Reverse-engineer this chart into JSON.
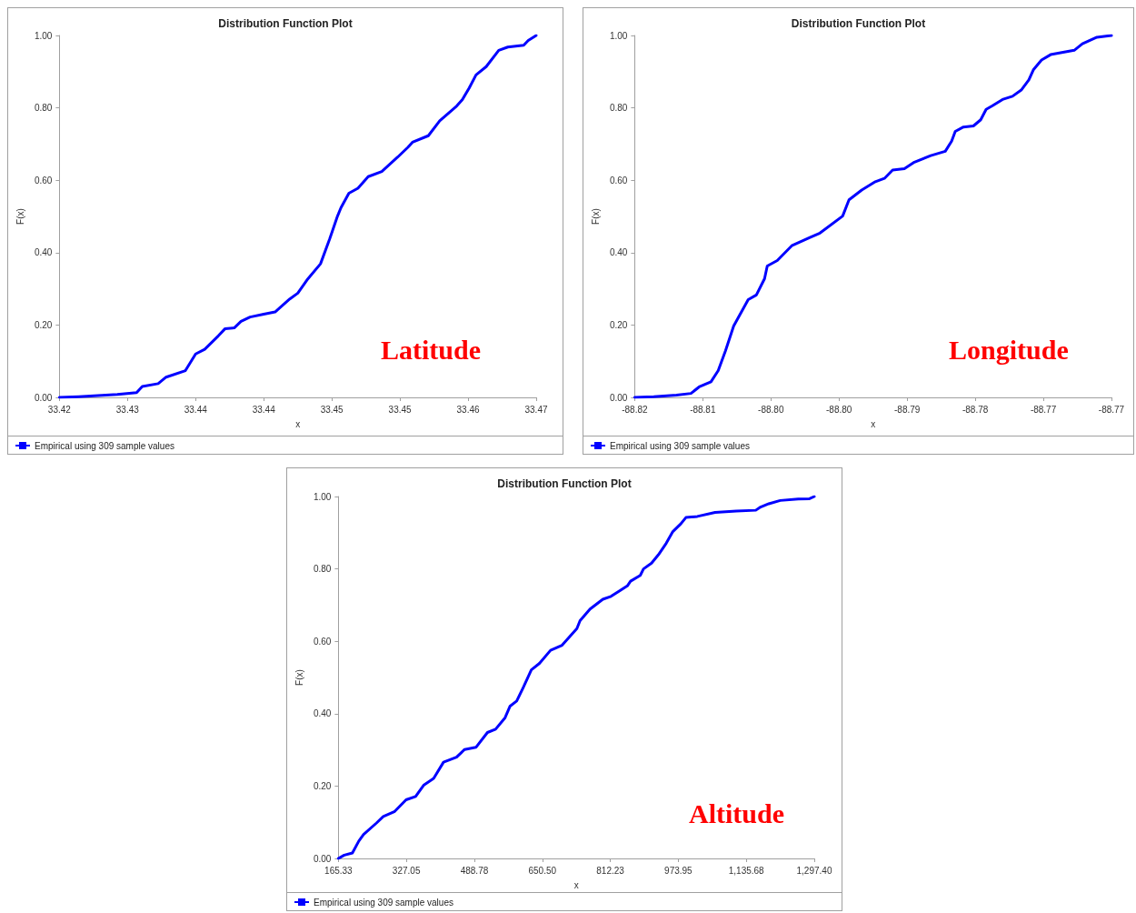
{
  "chart_data": [
    {
      "type": "line",
      "title": "Distribution Function Plot",
      "xlabel": "x",
      "ylabel": "F(x)",
      "annotations": [
        "Latitude"
      ],
      "legend": "bottom left",
      "grid": false,
      "x": [
        33.4248,
        33.4265,
        33.4299,
        33.4316,
        33.4321,
        33.4335,
        33.4342,
        33.4359,
        33.4368,
        33.4376,
        33.4388,
        33.4394,
        33.4402,
        33.4408,
        33.4416,
        33.4428,
        33.4438,
        33.4442,
        33.4451,
        33.4458,
        33.4466,
        33.4478,
        33.4486,
        33.4493,
        33.4496,
        33.4503,
        33.4511,
        33.452,
        33.4532,
        33.4546,
        33.4555,
        33.4559,
        33.4573,
        33.4583,
        33.4598,
        33.4603,
        33.4609,
        33.4615,
        33.4624,
        33.4635,
        33.4643,
        33.4657,
        33.4661,
        33.4668
      ],
      "series": [
        {
          "name": "Empirical using 309 sample values",
          "color": "#0000ff",
          "values": [
            0,
            0.002,
            0.008,
            0.013,
            0.03,
            0.038,
            0.056,
            0.074,
            0.12,
            0.133,
            0.17,
            0.19,
            0.192,
            0.21,
            0.222,
            0.23,
            0.236,
            0.247,
            0.272,
            0.288,
            0.324,
            0.369,
            0.437,
            0.501,
            0.524,
            0.564,
            0.578,
            0.61,
            0.624,
            0.664,
            0.691,
            0.705,
            0.723,
            0.764,
            0.805,
            0.823,
            0.855,
            0.891,
            0.914,
            0.959,
            0.968,
            0.973,
            0.986,
            1.0
          ]
        }
      ],
      "xlim": [
        33.4248,
        33.4668
      ],
      "xticks": [
        {
          "value": 33.4248,
          "label": "33.42"
        },
        {
          "value": 33.4308,
          "label": "33.43"
        },
        {
          "value": 33.4368,
          "label": "33.44"
        },
        {
          "value": 33.4428,
          "label": "33.44"
        },
        {
          "value": 33.4488,
          "label": "33.45"
        },
        {
          "value": 33.4548,
          "label": "33.45"
        },
        {
          "value": 33.4608,
          "label": "33.46"
        },
        {
          "value": 33.4668,
          "label": "33.47"
        }
      ],
      "ylim": [
        0,
        1
      ],
      "yticks": [
        {
          "value": 0,
          "label": "0.00"
        },
        {
          "value": 0.2,
          "label": "0.20"
        },
        {
          "value": 0.4,
          "label": "0.40"
        },
        {
          "value": 0.6,
          "label": "0.60"
        },
        {
          "value": 0.8,
          "label": "0.80"
        },
        {
          "value": 1,
          "label": "1.00"
        }
      ]
    },
    {
      "type": "line",
      "title": "Distribution Function Plot",
      "xlabel": "x",
      "ylabel": "F(x)",
      "annotations": [
        "Longitude"
      ],
      "legend": "bottom left",
      "grid": false,
      "x": [
        -88.819,
        -88.8169,
        -88.8144,
        -88.8128,
        -88.8119,
        -88.8106,
        -88.8098,
        -88.809,
        -88.8081,
        -88.8065,
        -88.8056,
        -88.8047,
        -88.8044,
        -88.8033,
        -88.8017,
        -88.7997,
        -88.7986,
        -88.7961,
        -88.7954,
        -88.794,
        -88.7925,
        -88.7915,
        -88.7906,
        -88.7893,
        -88.7882,
        -88.7864,
        -88.7848,
        -88.7841,
        -88.7837,
        -88.7828,
        -88.7817,
        -88.7809,
        -88.7803,
        -88.7796,
        -88.7785,
        -88.7774,
        -88.7764,
        -88.7756,
        -88.7751,
        -88.7742,
        -88.7732,
        -88.7706,
        -88.7697,
        -88.7681,
        -88.7665
      ],
      "series": [
        {
          "name": "Empirical using 309 sample values",
          "color": "#0000ff",
          "values": [
            0,
            0.002,
            0.006,
            0.011,
            0.029,
            0.043,
            0.074,
            0.129,
            0.197,
            0.27,
            0.283,
            0.328,
            0.363,
            0.378,
            0.419,
            0.442,
            0.454,
            0.501,
            0.546,
            0.573,
            0.596,
            0.605,
            0.628,
            0.632,
            0.65,
            0.668,
            0.68,
            0.708,
            0.735,
            0.747,
            0.75,
            0.767,
            0.796,
            0.806,
            0.823,
            0.832,
            0.85,
            0.877,
            0.905,
            0.932,
            0.947,
            0.959,
            0.977,
            0.995,
            1.0
          ]
        }
      ],
      "xlim": [
        -88.819,
        -88.7665
      ],
      "xticks": [
        {
          "value": -88.819,
          "label": "-88.82"
        },
        {
          "value": -88.8115,
          "label": "-88.81"
        },
        {
          "value": -88.804,
          "label": "-88.80"
        },
        {
          "value": -88.7965,
          "label": "-88.80"
        },
        {
          "value": -88.789,
          "label": "-88.79"
        },
        {
          "value": -88.7815,
          "label": "-88.78"
        },
        {
          "value": -88.774,
          "label": "-88.77"
        },
        {
          "value": -88.7665,
          "label": "-88.77"
        }
      ],
      "ylim": [
        0,
        1
      ],
      "yticks": [
        {
          "value": 0,
          "label": "0.00"
        },
        {
          "value": 0.2,
          "label": "0.20"
        },
        {
          "value": 0.4,
          "label": "0.40"
        },
        {
          "value": 0.6,
          "label": "0.60"
        },
        {
          "value": 0.8,
          "label": "0.80"
        },
        {
          "value": 1,
          "label": "1.00"
        }
      ]
    },
    {
      "type": "line",
      "title": "Distribution Function Plot",
      "xlabel": "x",
      "ylabel": "F(x)",
      "annotations": [
        "Altitude"
      ],
      "legend": "bottom left",
      "grid": false,
      "x": [
        165.33,
        179.2,
        198.6,
        213.9,
        225.2,
        256.0,
        272.1,
        299.3,
        326.3,
        349.0,
        368.8,
        391.9,
        415.4,
        446.4,
        465.4,
        492.5,
        519.9,
        539.3,
        561.9,
        573.8,
        589.5,
        604.5,
        624.3,
        643.6,
        670.0,
        697.4,
        732.6,
        740.2,
        764.0,
        794.4,
        813.8,
        833.4,
        852.6,
        860.3,
        883.4,
        891.1,
        910.3,
        926.6,
        945.3,
        960.9,
        980.2,
        992.0,
        1019.2,
        1061.4,
        1111.7,
        1158.2,
        1169.7,
        1189.2,
        1216.4,
        1259.2,
        1286.0,
        1297.4
      ],
      "series": [
        {
          "name": "Empirical using 309 sample values",
          "color": "#0000ff",
          "values": [
            0,
            0.009,
            0.015,
            0.048,
            0.066,
            0.098,
            0.116,
            0.13,
            0.162,
            0.171,
            0.203,
            0.221,
            0.266,
            0.28,
            0.301,
            0.307,
            0.348,
            0.357,
            0.389,
            0.421,
            0.435,
            0.471,
            0.521,
            0.539,
            0.575,
            0.589,
            0.635,
            0.657,
            0.689,
            0.716,
            0.724,
            0.739,
            0.753,
            0.766,
            0.782,
            0.8,
            0.816,
            0.839,
            0.871,
            0.903,
            0.925,
            0.942,
            0.945,
            0.956,
            0.96,
            0.962,
            0.971,
            0.98,
            0.989,
            0.993,
            0.994,
            1.0
          ]
        }
      ],
      "xlim": [
        165.33,
        1297.4
      ],
      "xticks": [
        {
          "value": 165.33,
          "label": "165.33"
        },
        {
          "value": 327.05,
          "label": "327.05"
        },
        {
          "value": 488.78,
          "label": "488.78"
        },
        {
          "value": 650.5,
          "label": "650.50"
        },
        {
          "value": 812.23,
          "label": "812.23"
        },
        {
          "value": 973.95,
          "label": "973.95"
        },
        {
          "value": 1135.68,
          "label": "1,135.68"
        },
        {
          "value": 1297.4,
          "label": "1,297.40"
        }
      ],
      "ylim": [
        0,
        1
      ],
      "yticks": [
        {
          "value": 0,
          "label": "0.00"
        },
        {
          "value": 0.2,
          "label": "0.20"
        },
        {
          "value": 0.4,
          "label": "0.40"
        },
        {
          "value": 0.6,
          "label": "0.60"
        },
        {
          "value": 0.8,
          "label": "0.80"
        },
        {
          "value": 1,
          "label": "1.00"
        }
      ]
    }
  ]
}
